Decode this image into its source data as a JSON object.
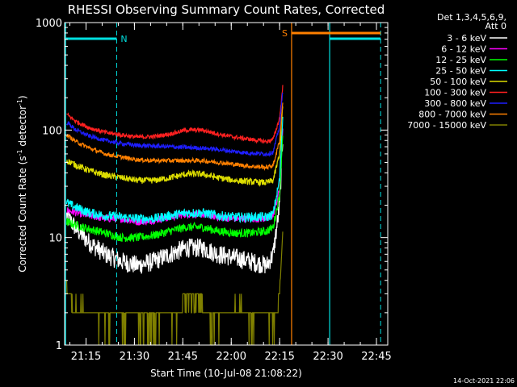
{
  "chart_data": {
    "type": "line",
    "title": "RHESSI Observing Summary Count Rates, Corrected",
    "xlabel": "Start Time (10-Jul-08 21:08:22)",
    "ylabel": "Corrected Count Rate (s",
    "ylabel_sup1": "-1",
    "ylabel_mid": " detector",
    "ylabel_sup2": "-1",
    "ylabel_end": ")",
    "y_scale": "log",
    "ylim": [
      1,
      1000
    ],
    "x_unit": "minutes of day (UT)",
    "xlim": [
      1268.37,
      1368.5
    ],
    "x_ticks": [
      {
        "value": 1275,
        "label": "21:15"
      },
      {
        "value": 1290,
        "label": "21:30"
      },
      {
        "value": 1305,
        "label": "21:45"
      },
      {
        "value": 1320,
        "label": "22:00"
      },
      {
        "value": 1335,
        "label": "22:15"
      },
      {
        "value": 1350,
        "label": "22:30"
      },
      {
        "value": 1365,
        "label": "22:45"
      }
    ],
    "y_ticks": [
      {
        "value": 1,
        "label": "1"
      },
      {
        "value": 10,
        "label": "10"
      },
      {
        "value": 100,
        "label": "100"
      },
      {
        "value": 1000,
        "label": "1000"
      }
    ],
    "legend_header": [
      "Det 1,3,4,5,6,9,",
      "Att 0"
    ],
    "legend_position": "right",
    "series": [
      {
        "name": "3 - 6 keV",
        "color": "#ffffff",
        "x": [
          1269,
          1272,
          1276,
          1281,
          1286,
          1291,
          1296,
          1301,
          1306,
          1311,
          1316,
          1321,
          1326,
          1331,
          1333,
          1335,
          1336
        ],
        "y": [
          16,
          12,
          9,
          7,
          6,
          5.5,
          6,
          7,
          8,
          8,
          7,
          6.5,
          6,
          5.5,
          7,
          20,
          90
        ]
      },
      {
        "name": "6 - 12 keV",
        "color": "#ff00ff",
        "x": [
          1269,
          1272,
          1276,
          1281,
          1286,
          1291,
          1296,
          1301,
          1306,
          1311,
          1316,
          1321,
          1326,
          1331,
          1333,
          1335,
          1336
        ],
        "y": [
          18,
          17,
          16,
          15,
          15,
          14,
          14.5,
          15.5,
          16.5,
          16.5,
          15.5,
          15,
          15,
          15,
          16,
          28,
          110
        ]
      },
      {
        "name": "12 - 25 keV",
        "color": "#00ff00",
        "x": [
          1269,
          1272,
          1276,
          1281,
          1286,
          1291,
          1296,
          1301,
          1306,
          1311,
          1316,
          1321,
          1326,
          1331,
          1333,
          1335,
          1336
        ],
        "y": [
          14,
          13,
          12,
          11,
          10,
          10,
          10.5,
          11.5,
          12.5,
          12.5,
          11.5,
          11,
          11,
          11.5,
          12.5,
          25,
          100
        ]
      },
      {
        "name": "25 - 50 keV",
        "color": "#00ffff",
        "x": [
          1269,
          1272,
          1276,
          1281,
          1286,
          1291,
          1296,
          1301,
          1306,
          1311,
          1316,
          1321,
          1326,
          1331,
          1333,
          1335,
          1336
        ],
        "y": [
          21,
          19,
          17,
          16,
          15.5,
          15,
          15,
          16,
          17,
          17,
          16,
          15.5,
          15.5,
          15.5,
          16.5,
          35,
          140
        ]
      },
      {
        "name": "50 - 100 keV",
        "color": "#dddd00",
        "x": [
          1269,
          1272,
          1276,
          1281,
          1286,
          1291,
          1296,
          1301,
          1306,
          1311,
          1316,
          1321,
          1326,
          1331,
          1333,
          1335,
          1336
        ],
        "y": [
          52,
          47,
          42,
          38,
          36,
          34,
          34,
          36,
          39,
          39,
          36,
          34,
          33,
          32.5,
          34,
          60,
          180
        ]
      },
      {
        "name": "100 - 300 keV",
        "color": "#ff2020",
        "x": [
          1269,
          1272,
          1276,
          1281,
          1286,
          1291,
          1296,
          1301,
          1306,
          1311,
          1316,
          1321,
          1326,
          1331,
          1333,
          1335,
          1336
        ],
        "y": [
          140,
          120,
          105,
          95,
          90,
          86,
          87,
          92,
          100,
          100,
          92,
          86,
          82,
          78,
          82,
          130,
          260
        ]
      },
      {
        "name": "300 - 800 keV",
        "color": "#1e1eff",
        "x": [
          1269,
          1272,
          1276,
          1281,
          1286,
          1291,
          1296,
          1301,
          1306,
          1311,
          1316,
          1321,
          1326,
          1331,
          1333,
          1335,
          1336
        ],
        "y": [
          118,
          100,
          88,
          80,
          75,
          72,
          71,
          70,
          69,
          68,
          66,
          63,
          61,
          60,
          62,
          110,
          240
        ]
      },
      {
        "name": "800 - 7000 keV",
        "color": "#ff8000",
        "x": [
          1269,
          1272,
          1276,
          1281,
          1286,
          1291,
          1296,
          1301,
          1306,
          1311,
          1316,
          1321,
          1326,
          1331,
          1333,
          1335,
          1336
        ],
        "y": [
          90,
          78,
          68,
          60,
          56,
          53,
          52,
          52,
          52,
          52,
          50,
          48,
          46,
          45,
          47,
          80,
          190
        ]
      },
      {
        "name": "7000 - 15000 keV",
        "color": "#808000",
        "x": [
          1269,
          1270,
          1271,
          1274,
          1277,
          1280,
          1283,
          1286,
          1287,
          1290,
          1292,
          1296,
          1299,
          1302,
          1305,
          1308,
          1311,
          1314,
          1317,
          1320,
          1323,
          1326,
          1329,
          1331,
          1333,
          1334,
          1335,
          1336
        ],
        "y": [
          3.5,
          3,
          2,
          2.5,
          2,
          1.5,
          2,
          2,
          1.5,
          2,
          1.5,
          1.5,
          2,
          1.5,
          2.5,
          2.5,
          2.5,
          1.5,
          2,
          2,
          2.5,
          1.5,
          2,
          2,
          1.5,
          2,
          3,
          12
        ]
      }
    ],
    "annotations": [
      {
        "text": "N",
        "color": "#00e0e0"
      },
      {
        "text": "S",
        "color": "#ff8000"
      }
    ],
    "night_color": "#00e0e0",
    "saa_color": "#ff8000",
    "night_bars": [
      [
        1268.37,
        1284.5
      ],
      [
        1350.5,
        1366.3
      ]
    ],
    "night_dashes": [
      1284.5,
      1366.3
    ],
    "night_solid": [
      1350.5
    ],
    "saa_bar": [
      1338.7,
      1366.3
    ],
    "saa_lines": [
      1338.7
    ],
    "footer_date": "14-Oct-2021 22:06"
  }
}
